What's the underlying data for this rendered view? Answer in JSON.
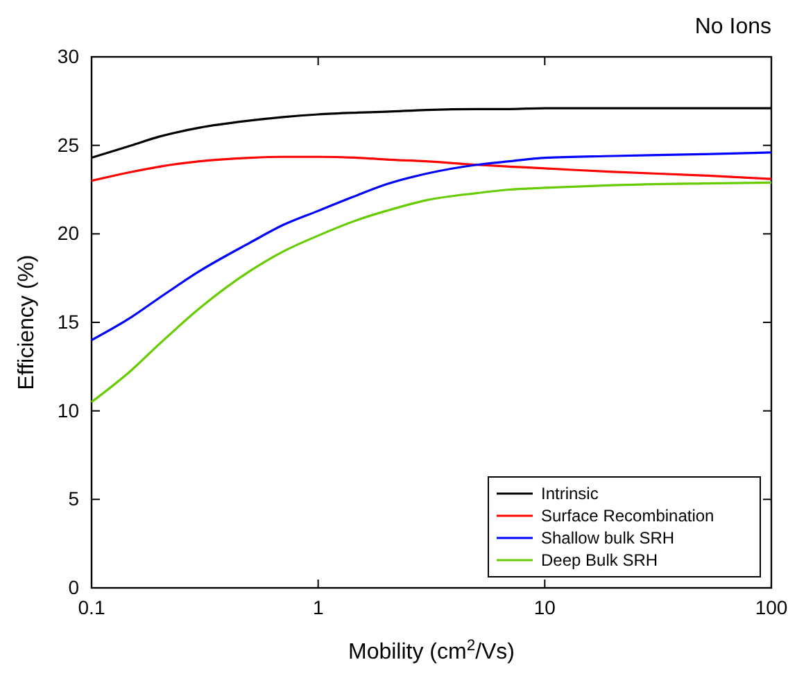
{
  "chart_data": {
    "type": "line",
    "title": "No Ions",
    "xlabel": "Mobility (cm$^{2}$/Vs)",
    "ylabel": "Efficiency (%)",
    "x": [
      0.1,
      0.15,
      0.2,
      0.3,
      0.5,
      0.7,
      1,
      1.5,
      2,
      3,
      5,
      7,
      10,
      20,
      50,
      100
    ],
    "series": [
      {
        "name": "Intrinsic",
        "color": "#000000",
        "values": [
          24.3,
          25.0,
          25.5,
          26.0,
          26.4,
          26.6,
          26.75,
          26.85,
          26.9,
          27.0,
          27.05,
          27.05,
          27.1,
          27.1,
          27.1,
          27.1
        ]
      },
      {
        "name": "Surface Recombination",
        "color": "#ff0000",
        "values": [
          23.0,
          23.5,
          23.8,
          24.1,
          24.3,
          24.35,
          24.35,
          24.3,
          24.2,
          24.1,
          23.9,
          23.8,
          23.7,
          23.5,
          23.3,
          23.1
        ]
      },
      {
        "name": "Shallow bulk SRH",
        "color": "#0000ff",
        "values": [
          14.0,
          15.3,
          16.4,
          17.9,
          19.5,
          20.5,
          21.3,
          22.2,
          22.8,
          23.4,
          23.9,
          24.1,
          24.3,
          24.4,
          24.5,
          24.6
        ]
      },
      {
        "name": "Deep Bulk SRH",
        "color": "#66cc00",
        "values": [
          10.5,
          12.3,
          13.8,
          15.8,
          17.9,
          19.0,
          19.9,
          20.8,
          21.3,
          21.9,
          22.3,
          22.5,
          22.6,
          22.75,
          22.85,
          22.9
        ]
      }
    ],
    "log": "x",
    "xlim": [
      0.1,
      100
    ],
    "xticks": [
      0.1,
      1,
      10,
      100
    ],
    "ylim": [
      0,
      30
    ],
    "yticks": [
      0,
      5,
      10,
      15,
      20,
      25,
      30
    ],
    "legend": "bottom right",
    "grid": false,
    "marker": "none",
    "line_style": "solid"
  }
}
